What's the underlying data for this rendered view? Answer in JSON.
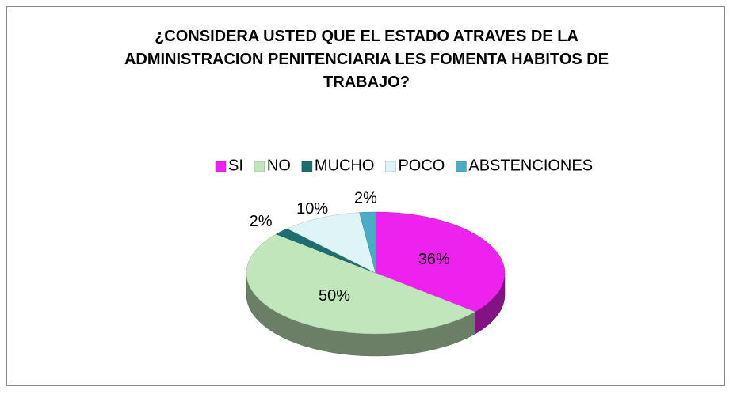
{
  "chart_data": {
    "type": "pie3d",
    "title": "¿CONSIDERA USTED QUE EL ESTADO ATRAVES DE LA ADMINISTRACION PENITENCIARIA LES FOMENTA HABITOS DE TRABAJO?",
    "categories": [
      "SI",
      "NO",
      "MUCHO",
      "POCO",
      "ABSTENCIONES"
    ],
    "values": [
      36,
      50,
      2,
      10,
      2
    ],
    "value_labels": [
      "36%",
      "50%",
      "2%",
      "10%",
      "2%"
    ],
    "colors": [
      "#ee22ee",
      "#c2e6bb",
      "#1d6e6e",
      "#def4f6",
      "#4bacc6"
    ],
    "legend": "top"
  }
}
